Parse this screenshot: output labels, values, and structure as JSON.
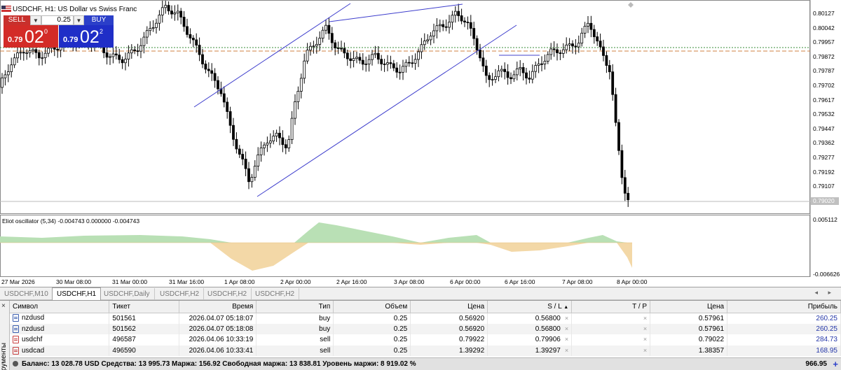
{
  "chart": {
    "symbol_title": "USDCHF, H1:  US Dollar vs Swiss Franc",
    "oscillator_title": "Eliot oscillator (5,34) -0.004743 0.000000 -0.004743",
    "price_axis": [
      "0.80127",
      "0.80042",
      "0.79957",
      "0.79872",
      "0.79787",
      "0.79702",
      "0.79617",
      "0.79532",
      "0.79447",
      "0.79362",
      "0.79277",
      "0.79192",
      "0.79107"
    ],
    "current_price_badge": "0.79020",
    "osc_axis": [
      "0.005112",
      "-0.006626"
    ],
    "time_axis": [
      "27 Mar 2026",
      "30 Mar 08:00",
      "31 Mar 00:00",
      "31 Mar 16:00",
      "1 Apr 08:00",
      "2 Apr 00:00",
      "2 Apr 16:00",
      "3 Apr 08:00",
      "6 Apr 00:00",
      "6 Apr 16:00",
      "7 Apr 08:00",
      "8 Apr 00:00"
    ],
    "colors": {
      "bull": "#ffffff",
      "bear": "#000000",
      "channel": "#3c3ccc",
      "osc_pos": "#b9e0b5",
      "osc_neg": "#f3d8a7",
      "ask_line": "#3a8c3a",
      "bid_line": "#d08040"
    }
  },
  "one_click": {
    "sell_label": "SELL",
    "buy_label": "BUY",
    "volume": "0.25",
    "sell_small": "0.79",
    "sell_big": "02",
    "sell_sup": "0",
    "buy_small": "0.79",
    "buy_big": "02",
    "buy_sup": "2",
    "dropdown_glyph": "▼"
  },
  "tabs": [
    "USDCHF,M10",
    "USDCHF,H1",
    "USDCHF,Daily",
    "USDCHF,H2",
    "USDCHF,H2",
    "USDCHF,H2"
  ],
  "tab_arrows": "◂ ▸",
  "terminal": {
    "close_glyph": "×",
    "side_label": "рументы",
    "headers": {
      "symbol": "Символ",
      "ticket": "Тикет",
      "time": "Время",
      "type": "Тип",
      "volume": "Объем",
      "price": "Цена",
      "sl": "S / L",
      "sl_sort": "▲",
      "tp": "T / P",
      "cur_price": "Цена",
      "profit": "Прибыль"
    },
    "rows": [
      {
        "symbol": "nzdusd",
        "ticket": "501561",
        "time": "2026.04.07 05:18:07",
        "type": "buy",
        "volume": "0.25",
        "price": "0.56920",
        "sl": "0.56800",
        "tp": "",
        "cur_price": "0.57961",
        "profit": "260.25",
        "side": "buy"
      },
      {
        "symbol": "nzdusd",
        "ticket": "501562",
        "time": "2026.04.07 05:18:08",
        "type": "buy",
        "volume": "0.25",
        "price": "0.56920",
        "sl": "0.56800",
        "tp": "",
        "cur_price": "0.57961",
        "profit": "260.25",
        "side": "buy"
      },
      {
        "symbol": "usdchf",
        "ticket": "496587",
        "time": "2026.04.06 10:33:19",
        "type": "sell",
        "volume": "0.25",
        "price": "0.79922",
        "sl": "0.79906",
        "tp": "",
        "cur_price": "0.79022",
        "profit": "284.73",
        "side": "sell"
      },
      {
        "symbol": "usdcad",
        "ticket": "496590",
        "time": "2026.04.06 10:33:41",
        "type": "sell",
        "volume": "0.25",
        "price": "1.39292",
        "sl": "1.39297",
        "tp": "",
        "cur_price": "1.38357",
        "profit": "168.95",
        "side": "sell"
      }
    ],
    "x_glyph": "×",
    "balance_text": "Баланс: 13 028.78 USD  Средства: 13 995.73  Маржа: 156.92  Свободная маржа: 13 838.81  Уровень маржи: 8 919.02 %",
    "balance_total": "966.95",
    "plus_glyph": "+"
  }
}
